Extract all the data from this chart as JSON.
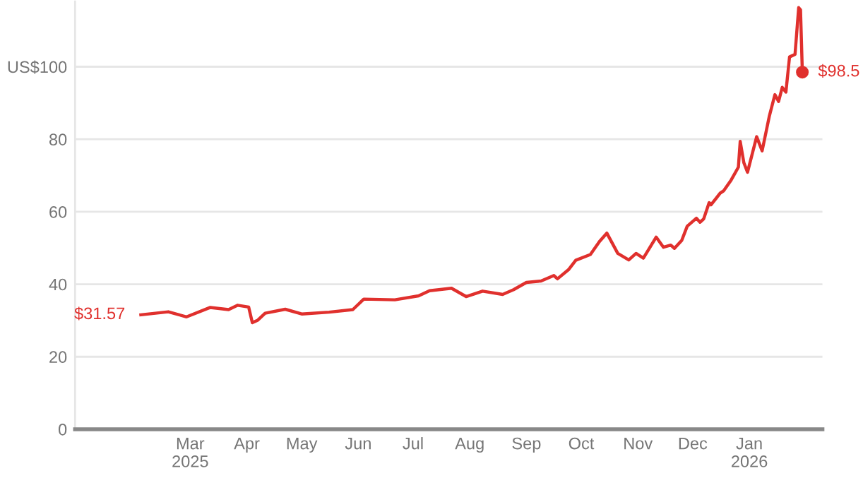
{
  "chart_data": {
    "type": "line",
    "x": [
      "2025-02-02",
      "2025-02-17",
      "2025-02-27",
      "2025-03-12",
      "2025-03-22",
      "2025-03-27",
      "2025-04-02",
      "2025-04-04",
      "2025-04-07",
      "2025-04-11",
      "2025-04-22",
      "2025-05-01",
      "2025-05-16",
      "2025-05-29",
      "2025-06-04",
      "2025-06-21",
      "2025-07-04",
      "2025-07-10",
      "2025-07-22",
      "2025-07-30",
      "2025-08-08",
      "2025-08-19",
      "2025-08-25",
      "2025-09-01",
      "2025-09-09",
      "2025-09-16",
      "2025-09-18",
      "2025-09-24",
      "2025-09-28",
      "2025-10-06",
      "2025-10-11",
      "2025-10-15",
      "2025-10-21",
      "2025-10-27",
      "2025-10-31",
      "2025-11-04",
      "2025-11-11",
      "2025-11-15",
      "2025-11-19",
      "2025-11-21",
      "2025-11-25",
      "2025-11-28",
      "2025-12-03",
      "2025-12-05",
      "2025-12-07",
      "2025-12-10",
      "2025-12-11",
      "2025-12-16",
      "2025-12-18",
      "2025-12-22",
      "2025-12-26",
      "2025-12-27",
      "2025-12-29",
      "2025-12-31",
      "2026-01-05",
      "2026-01-08",
      "2026-01-12",
      "2026-01-15",
      "2026-01-17",
      "2026-01-19",
      "2026-01-21",
      "2026-01-23",
      "2026-01-26",
      "2026-01-28",
      "2026-01-29",
      "2026-01-30"
    ],
    "series": [
      {
        "color": "#e0302d",
        "values": [
          31.57,
          32.4,
          31.0,
          33.6,
          33.0,
          34.2,
          33.7,
          29.4,
          30.1,
          32.0,
          33.1,
          31.8,
          32.3,
          33.0,
          35.9,
          35.7,
          36.8,
          38.2,
          38.9,
          36.6,
          38.1,
          37.2,
          38.5,
          40.5,
          40.9,
          42.4,
          41.5,
          44.0,
          46.6,
          48.2,
          51.8,
          54.1,
          48.5,
          46.7,
          48.5,
          47.2,
          53.0,
          50.2,
          50.8,
          49.9,
          52.1,
          56.0,
          58.2,
          57.1,
          58.0,
          62.5,
          61.9,
          65.1,
          65.8,
          68.7,
          72.3,
          79.4,
          73.5,
          70.9,
          80.7,
          76.8,
          86.5,
          92.3,
          90.4,
          94.3,
          93.0,
          102.7,
          103.4,
          116.3,
          115.7,
          98.5
        ]
      },
      {
        "type": "scatter",
        "marker": "circle",
        "color": "#e0302d",
        "x": [
          "2026-01-30"
        ],
        "values": [
          98.5
        ]
      }
    ],
    "annotations": [
      {
        "text": "$31.57",
        "x": "2025-02-02",
        "y": 31.57
      },
      {
        "text": "$98.5",
        "x": "2026-01-30",
        "y": 98.5
      }
    ],
    "xlim": [
      "2024-12-28",
      "2026-02-10"
    ],
    "xticks": [
      {
        "value": "2025-03-01",
        "label": "Mar\n2025"
      },
      {
        "value": "2025-04-01",
        "label": "Apr"
      },
      {
        "value": "2025-05-01",
        "label": "May"
      },
      {
        "value": "2025-06-01",
        "label": "Jun"
      },
      {
        "value": "2025-07-01",
        "label": "Jul"
      },
      {
        "value": "2025-08-01",
        "label": "Aug"
      },
      {
        "value": "2025-09-01",
        "label": "Sep"
      },
      {
        "value": "2025-10-01",
        "label": "Oct"
      },
      {
        "value": "2025-11-01",
        "label": "Nov"
      },
      {
        "value": "2025-12-01",
        "label": "Dec"
      },
      {
        "value": "2026-01-01",
        "label": "Jan\n2026"
      }
    ],
    "ylim": [
      0,
      118
    ],
    "yticks": [
      0,
      20,
      40,
      60,
      80,
      {
        "value": 100,
        "label": "US$100"
      }
    ],
    "grid": "y",
    "legend": false,
    "line_style": "solid"
  }
}
